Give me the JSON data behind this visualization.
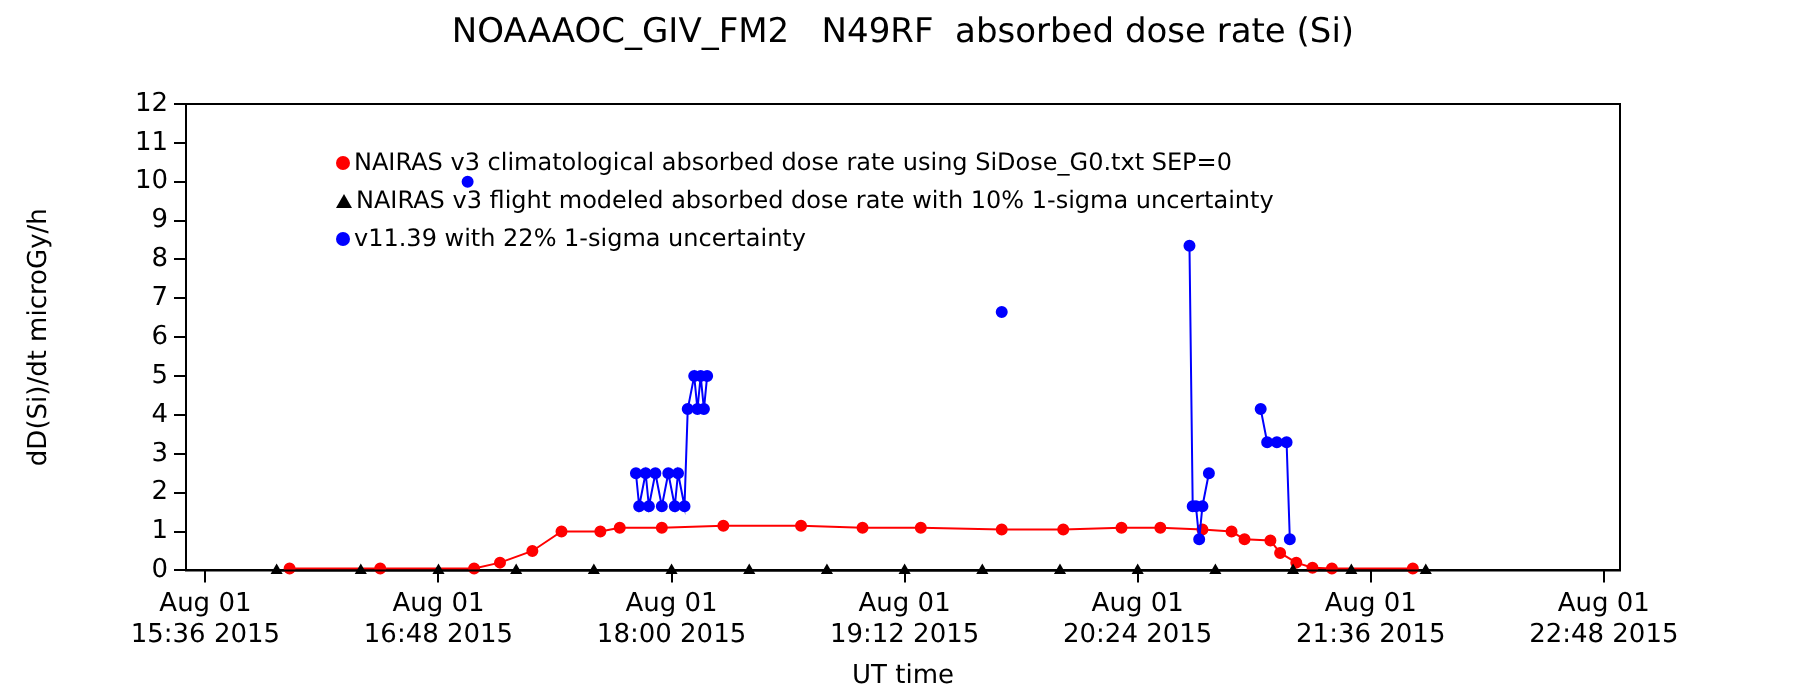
{
  "chart_data": {
    "type": "line",
    "title": "NOAAAOC_GIV_FM2   N49RF  absorbed dose rate (Si)",
    "xlabel": "UT time",
    "ylabel": "dD(Si)/dt microGy/h",
    "xlim": [
      "2015-08-01T15:30",
      "2015-08-01T22:53"
    ],
    "xticks": [
      {
        "value": "2015-08-01T15:36",
        "label": "Aug 01\n15:36 2015"
      },
      {
        "value": "2015-08-01T16:48",
        "label": "Aug 01\n16:48 2015"
      },
      {
        "value": "2015-08-01T18:00",
        "label": "Aug 01\n18:00 2015"
      },
      {
        "value": "2015-08-01T19:12",
        "label": "Aug 01\n19:12 2015"
      },
      {
        "value": "2015-08-01T20:24",
        "label": "Aug 01\n20:24 2015"
      },
      {
        "value": "2015-08-01T21:36",
        "label": "Aug 01\n21:36 2015"
      },
      {
        "value": "2015-08-01T22:48",
        "label": "Aug 01\n22:48 2015"
      }
    ],
    "ylim": [
      0,
      12
    ],
    "yticks": [
      0,
      1,
      2,
      3,
      4,
      5,
      6,
      7,
      8,
      9,
      10,
      11,
      12
    ],
    "grid": false,
    "legend": "top left",
    "series": [
      {
        "name": "NAIRAS v3 climatological absorbed dose rate using SiDose_G0.txt SEP=0",
        "color": "#ff0000",
        "marker": "circle",
        "x": [
          "2015-08-01T16:02",
          "2015-08-01T16:30",
          "2015-08-01T16:59",
          "2015-08-01T17:07",
          "2015-08-01T17:17",
          "2015-08-01T17:26",
          "2015-08-01T17:38",
          "2015-08-01T17:44",
          "2015-08-01T17:57",
          "2015-08-01T18:16",
          "2015-08-01T18:40",
          "2015-08-01T18:59",
          "2015-08-01T19:17",
          "2015-08-01T19:42",
          "2015-08-01T20:01",
          "2015-08-01T20:19",
          "2015-08-01T20:31",
          "2015-08-01T20:44",
          "2015-08-01T20:53",
          "2015-08-01T20:57",
          "2015-08-01T21:05",
          "2015-08-01T21:08",
          "2015-08-01T21:13",
          "2015-08-01T21:18",
          "2015-08-01T21:24",
          "2015-08-01T21:49"
        ],
        "values": [
          0.05,
          0.05,
          0.05,
          0.2,
          0.5,
          1.0,
          1.0,
          1.1,
          1.1,
          1.15,
          1.15,
          1.1,
          1.1,
          1.05,
          1.05,
          1.1,
          1.1,
          1.05,
          1.0,
          0.8,
          0.77,
          0.45,
          0.2,
          0.07,
          0.05,
          0.05
        ]
      },
      {
        "name": "NAIRAS v3 flight modeled absorbed dose rate with 10% 1-sigma uncertainty",
        "color": "#000000",
        "marker": "triangle",
        "x": [
          "2015-08-01T15:58",
          "2015-08-01T16:24",
          "2015-08-01T16:48",
          "2015-08-01T17:12",
          "2015-08-01T17:36",
          "2015-08-01T18:00",
          "2015-08-01T18:24",
          "2015-08-01T18:48",
          "2015-08-01T19:12",
          "2015-08-01T19:36",
          "2015-08-01T20:00",
          "2015-08-01T20:24",
          "2015-08-01T20:48",
          "2015-08-01T21:12",
          "2015-08-01T21:30",
          "2015-08-01T21:53"
        ],
        "values": [
          0,
          0,
          0,
          0,
          0,
          0,
          0,
          0,
          0,
          0,
          0,
          0,
          0,
          0,
          0,
          0
        ]
      },
      {
        "name": "v11.39 with 22% 1-sigma uncertainty",
        "color": "#0000ff",
        "marker": "circle",
        "x": [
          "2015-08-01T16:57",
          "2015-08-01T17:24",
          "2015-08-01T17:49",
          "2015-08-01T17:50",
          "2015-08-01T17:52",
          "2015-08-01T17:53",
          "2015-08-01T17:55",
          "2015-08-01T17:57",
          "2015-08-01T17:59",
          "2015-08-01T18:01",
          "2015-08-01T18:02",
          "2015-08-01T18:04",
          "2015-08-01T18:05",
          "2015-08-01T18:07",
          "2015-08-01T18:08",
          "2015-08-01T18:09",
          "2015-08-01T18:10",
          "2015-08-01T18:11",
          "2015-08-01T19:00",
          "2015-08-01T19:42",
          "2015-08-01T20:12",
          "2015-08-01T20:40",
          "2015-08-01T20:41",
          "2015-08-01T20:42",
          "2015-08-01T20:43",
          "2015-08-01T20:44",
          "2015-08-01T20:46",
          "2015-08-01T20:54",
          "2015-08-01T21:02",
          "2015-08-01T21:04",
          "2015-08-01T21:07",
          "2015-08-01T21:10",
          "2015-08-01T21:11"
        ],
        "values": [
          10.0,
          null,
          2.5,
          1.65,
          2.5,
          1.65,
          2.5,
          1.65,
          2.5,
          1.65,
          2.5,
          1.65,
          4.15,
          5.0,
          4.15,
          5.0,
          4.15,
          5.0,
          null,
          6.65,
          null,
          8.35,
          1.65,
          1.65,
          0.8,
          1.65,
          2.5,
          null,
          4.15,
          3.3,
          3.3,
          3.3,
          0.8
        ]
      }
    ]
  }
}
